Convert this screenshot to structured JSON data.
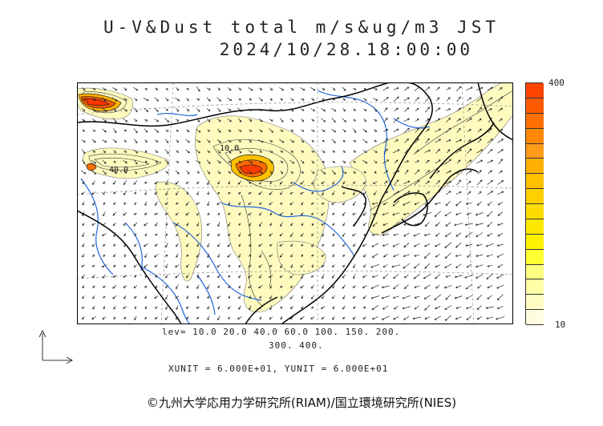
{
  "header": {
    "title": "U-V&Dust total m/s&ug/m3 JST",
    "datetime": "2024/10/28.18:00:00"
  },
  "legend": {
    "max_label": "400",
    "min_label": "10",
    "colors_top_to_bottom": [
      "#ff4400",
      "#ff5a00",
      "#ff7000",
      "#ff8800",
      "#ff9c1a",
      "#ffb000",
      "#ffc000",
      "#ffd000",
      "#ffdc00",
      "#ffe800",
      "#fff200",
      "#ffff33",
      "#ffff80",
      "#ffffa6",
      "#fffcc4",
      "#fffde0"
    ]
  },
  "levels": {
    "line1": "lev= 10.0 20.0 40.0 60.0 100. 150. 200.",
    "line2": "300. 400."
  },
  "units": "XUNIT = 6.000E+01, YUNIT = 6.000E+01",
  "map": {
    "contour_labels": [
      "10.0",
      "40.0"
    ],
    "colors": {
      "land_boundary": "#000000",
      "river": "#2266dd",
      "grid": "#888888",
      "dust_low": "#fffabe",
      "dust_high": "#ff3300"
    }
  },
  "copyright": "©九州大学応用力学研究所(RIAM)/国立環境研究所(NIES)"
}
